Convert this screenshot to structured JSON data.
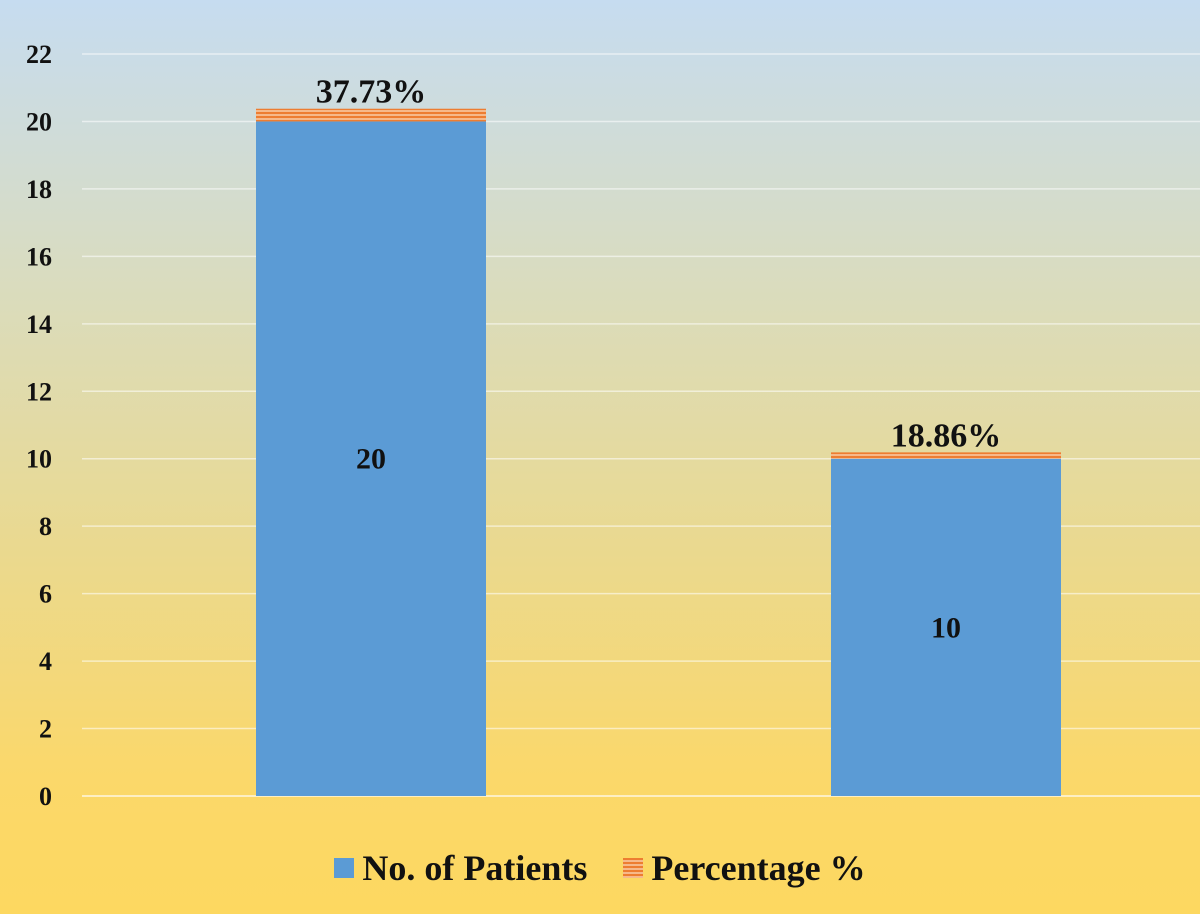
{
  "chart_data": {
    "type": "bar",
    "stacked": true,
    "categories": [
      "",
      ""
    ],
    "ylim": [
      0,
      22
    ],
    "y_ticks": [
      0,
      2,
      4,
      6,
      8,
      10,
      12,
      14,
      16,
      18,
      20,
      22
    ],
    "grid": true,
    "legend_position": "bottom",
    "series": [
      {
        "name": "No. of Patients",
        "values": [
          20,
          10
        ],
        "labels": [
          "20",
          "10"
        ],
        "color": "#5b9bd5"
      },
      {
        "name": "Percentage %",
        "values": [
          0.3773,
          0.1886
        ],
        "labels": [
          "37.73%",
          "18.86%"
        ],
        "color": "#ed7d31"
      }
    ]
  }
}
